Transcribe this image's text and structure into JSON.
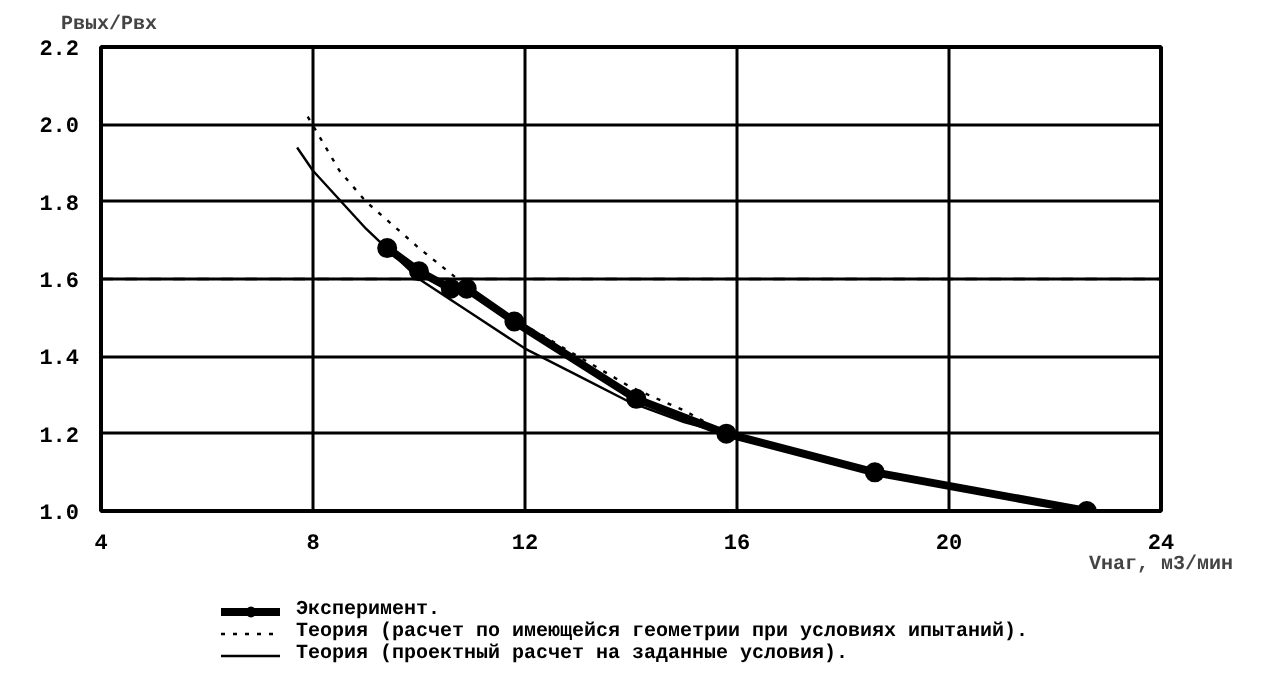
{
  "chart_data": {
    "type": "line",
    "xlabel": "Vнаг, м3/мин",
    "ylabel": "Pвых/Pвх",
    "xlim": [
      4,
      24
    ],
    "xticks": [
      4,
      8,
      12,
      16,
      20,
      24
    ],
    "ylim": [
      1.0,
      2.2
    ],
    "yticks": [
      {
        "value": 1.0,
        "label": "1.0"
      },
      {
        "value": 1.2,
        "label": "1.2"
      },
      {
        "value": 1.4,
        "label": "1.4"
      },
      {
        "value": 1.6,
        "label": "1.6"
      },
      {
        "value": 1.8,
        "label": "1.8"
      },
      {
        "value": 2.0,
        "label": "2.0"
      },
      {
        "value": 2.2,
        "label": "2.2"
      }
    ],
    "grid": true,
    "legend": "bottom",
    "ref_lines": [
      {
        "axis": "y",
        "value": 1.6,
        "line_style": "dashed",
        "color": "#000000"
      }
    ],
    "series": [
      {
        "name": "Эксперимент.",
        "color": "#000000",
        "marker": "circle",
        "line_style": "solid",
        "x": [
          9.4,
          10.0,
          10.6,
          10.9,
          11.8,
          14.1,
          15.8,
          18.6,
          22.6
        ],
        "values": [
          1.68,
          1.62,
          1.575,
          1.575,
          1.49,
          1.29,
          1.2,
          1.1,
          1.0
        ]
      },
      {
        "name": "Теория (расчет по имеющейся геометрии при условиях ипытаний).",
        "color": "#000000",
        "marker": "none",
        "line_style": "dotted",
        "x": [
          7.9,
          8.5,
          9,
          10,
          11,
          12,
          13,
          14,
          15,
          15.8
        ],
        "values": [
          2.02,
          1.88,
          1.8,
          1.68,
          1.57,
          1.48,
          1.4,
          1.32,
          1.26,
          1.2
        ]
      },
      {
        "name": "Теория (проектный расчет на заданные условия).",
        "color": "#000000",
        "marker": "none",
        "line_style": "solid",
        "x": [
          7.7,
          8,
          9,
          10,
          11,
          12,
          13,
          14,
          15,
          15.8
        ],
        "values": [
          1.94,
          1.88,
          1.73,
          1.6,
          1.51,
          1.42,
          1.35,
          1.28,
          1.23,
          1.2
        ]
      }
    ]
  }
}
